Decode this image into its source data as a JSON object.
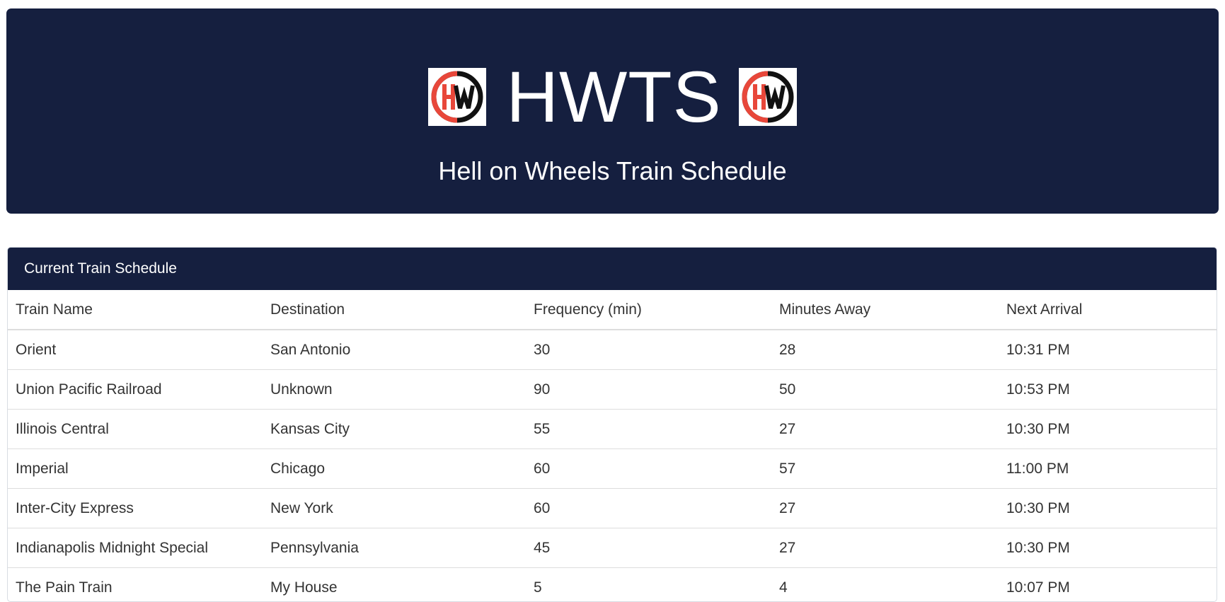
{
  "header": {
    "title": "HWTS",
    "subtitle": "Hell on Wheels Train Schedule",
    "logo_colors": {
      "ring_black": "#111111",
      "ring_red": "#e8473a"
    }
  },
  "panel": {
    "heading": "Current Train Schedule"
  },
  "table": {
    "columns": [
      "Train Name",
      "Destination",
      "Frequency (min)",
      "Minutes Away",
      "Next Arrival"
    ],
    "rows": [
      [
        "Orient",
        "San Antonio",
        "30",
        "28",
        "10:31 PM"
      ],
      [
        "Union Pacific Railroad",
        "Unknown",
        "90",
        "50",
        "10:53 PM"
      ],
      [
        "Illinois Central",
        "Kansas City",
        "55",
        "27",
        "10:30 PM"
      ],
      [
        "Imperial",
        "Chicago",
        "60",
        "57",
        "11:00 PM"
      ],
      [
        "Inter-City Express",
        "New York",
        "60",
        "27",
        "10:30 PM"
      ],
      [
        "Indianapolis Midnight Special",
        "Pennsylvania",
        "45",
        "27",
        "10:30 PM"
      ],
      [
        "The Pain Train",
        "My House",
        "5",
        "4",
        "10:07 PM"
      ]
    ]
  },
  "colors": {
    "navy": "#151f3f",
    "text": "#333333",
    "border": "#dddddd"
  }
}
